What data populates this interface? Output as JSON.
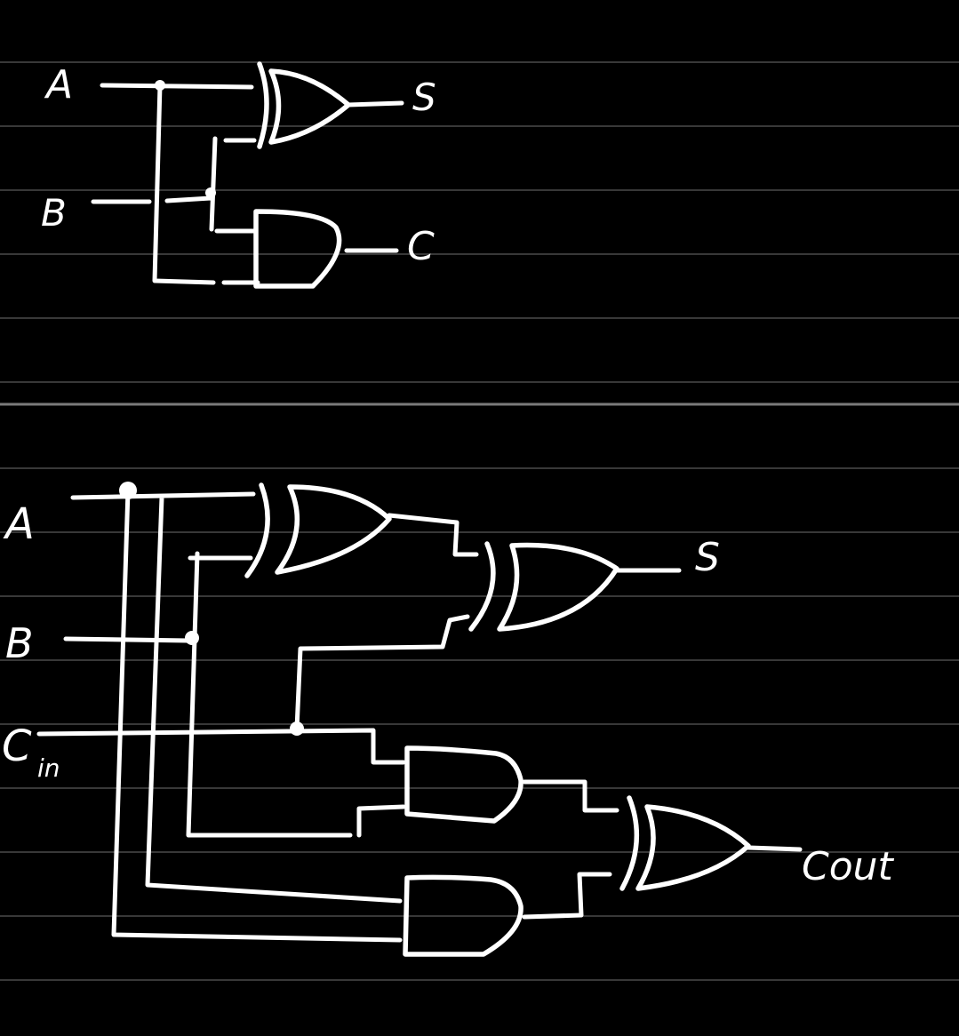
{
  "half_adder": {
    "inputs": {
      "a": "A",
      "b": "B"
    },
    "outputs": {
      "sum": "S",
      "carry": "C"
    }
  },
  "full_adder": {
    "inputs": {
      "a": "A",
      "b": "B",
      "cin_main": "C",
      "cin_sub": "in"
    },
    "outputs": {
      "sum": "S",
      "cout": "Cout"
    }
  },
  "colors": {
    "background": "#000000",
    "ink": "#ffffff",
    "ruled_line": "#4a4a4a"
  }
}
